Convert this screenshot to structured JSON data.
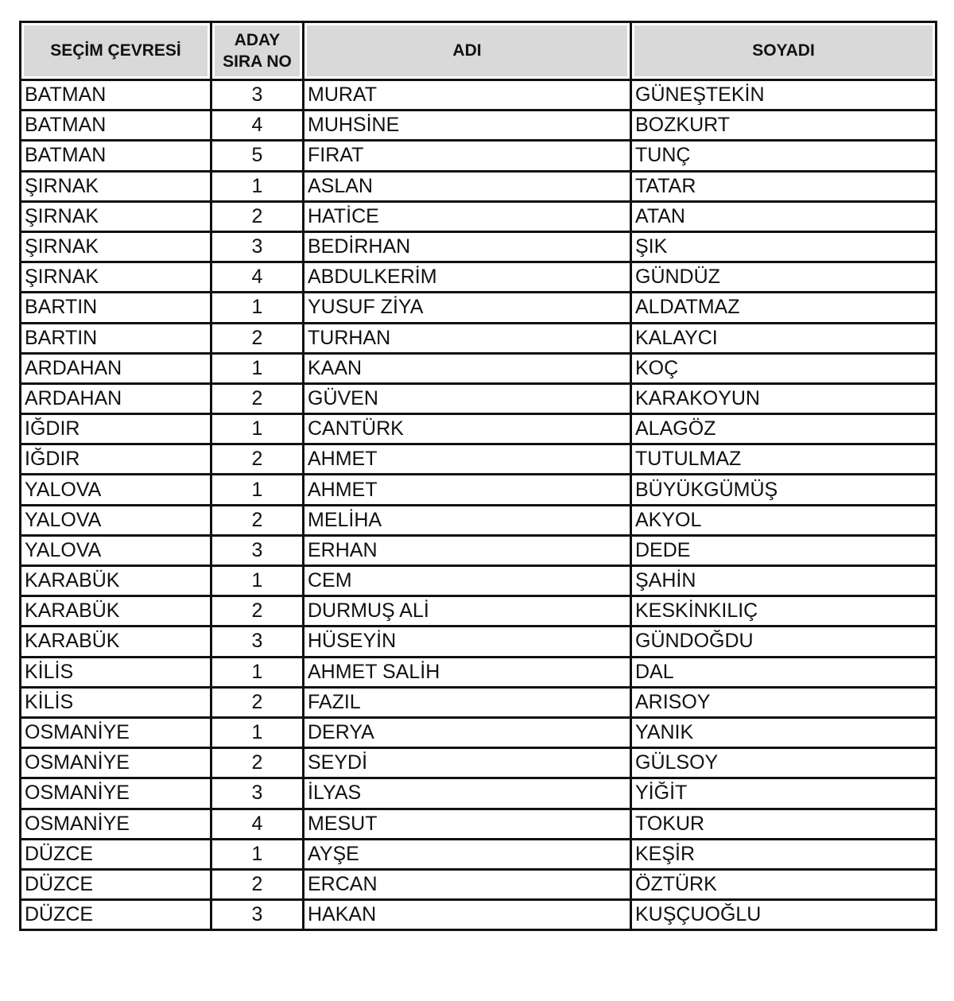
{
  "headers": {
    "district": "SEÇİM ÇEVRESİ",
    "order_line1": "ADAY",
    "order_line2": "SIRA NO",
    "name": "ADI",
    "surname": "SOYADI"
  },
  "rows": [
    [
      "BATMAN",
      "3",
      "MURAT",
      "GÜNEŞTEKİN"
    ],
    [
      "BATMAN",
      "4",
      "MUHSİNE",
      "BOZKURT"
    ],
    [
      "BATMAN",
      "5",
      "FIRAT",
      "TUNÇ"
    ],
    [
      "ŞIRNAK",
      "1",
      "ASLAN",
      "TATAR"
    ],
    [
      "ŞIRNAK",
      "2",
      "HATİCE",
      "ATAN"
    ],
    [
      "ŞIRNAK",
      "3",
      "BEDİRHAN",
      "ŞIK"
    ],
    [
      "ŞIRNAK",
      "4",
      "ABDULKERİM",
      "GÜNDÜZ"
    ],
    [
      "BARTIN",
      "1",
      "YUSUF ZİYA",
      "ALDATMAZ"
    ],
    [
      "BARTIN",
      "2",
      "TURHAN",
      "KALAYCI"
    ],
    [
      "ARDAHAN",
      "1",
      "KAAN",
      "KOÇ"
    ],
    [
      "ARDAHAN",
      "2",
      "GÜVEN",
      "KARAKOYUN"
    ],
    [
      "IĞDIR",
      "1",
      "CANTÜRK",
      "ALAGÖZ"
    ],
    [
      "IĞDIR",
      "2",
      "AHMET",
      "TUTULMAZ"
    ],
    [
      "YALOVA",
      "1",
      "AHMET",
      "BÜYÜKGÜMÜŞ"
    ],
    [
      "YALOVA",
      "2",
      "MELİHA",
      "AKYOL"
    ],
    [
      "YALOVA",
      "3",
      "ERHAN",
      "DEDE"
    ],
    [
      "KARABÜK",
      "1",
      "CEM",
      "ŞAHİN"
    ],
    [
      "KARABÜK",
      "2",
      "DURMUŞ ALİ",
      "KESKİNKILIÇ"
    ],
    [
      "KARABÜK",
      "3",
      "HÜSEYİN",
      "GÜNDOĞDU"
    ],
    [
      "KİLİS",
      "1",
      "AHMET SALİH",
      "DAL"
    ],
    [
      "KİLİS",
      "2",
      "FAZIL",
      "ARISOY"
    ],
    [
      "OSMANİYE",
      "1",
      "DERYA",
      "YANIK"
    ],
    [
      "OSMANİYE",
      "2",
      "SEYDİ",
      "GÜLSOY"
    ],
    [
      "OSMANİYE",
      "3",
      "İLYAS",
      "YİĞİT"
    ],
    [
      "OSMANİYE",
      "4",
      "MESUT",
      "TOKUR"
    ],
    [
      "DÜZCE",
      "1",
      "AYŞE",
      "KEŞİR"
    ],
    [
      "DÜZCE",
      "2",
      "ERCAN",
      "ÖZTÜRK"
    ],
    [
      "DÜZCE",
      "3",
      "HAKAN",
      "KUŞÇUOĞLU"
    ]
  ]
}
